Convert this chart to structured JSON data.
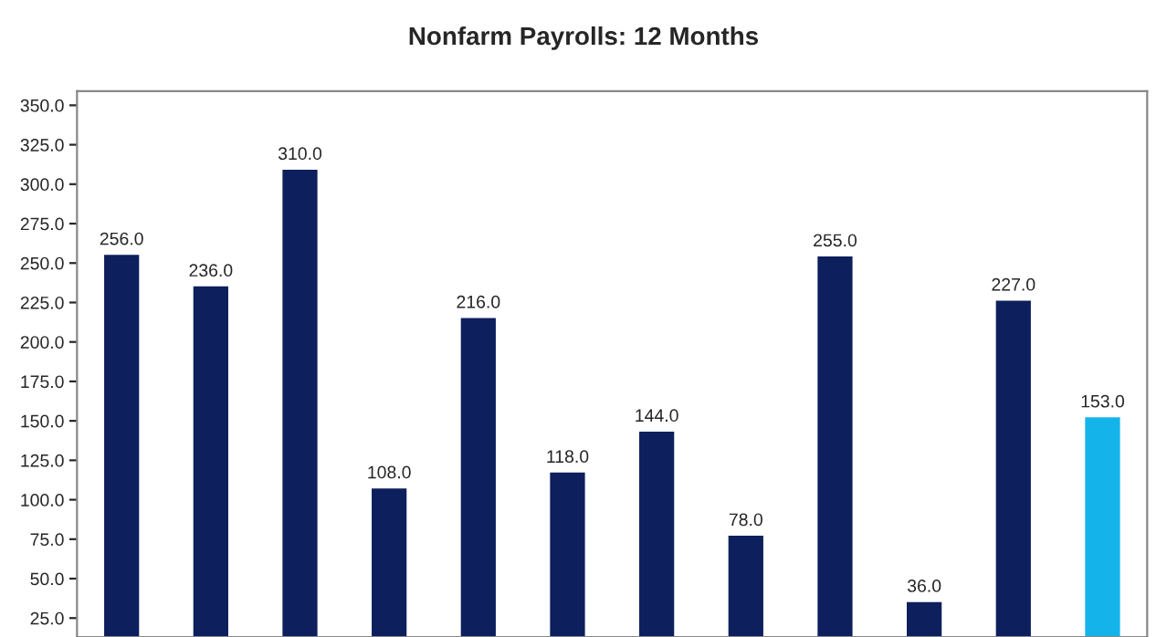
{
  "chart_data": {
    "type": "bar",
    "title": "Nonfarm Payrolls: 12 Months",
    "categories": [
      null,
      null,
      null,
      null,
      null,
      null,
      null,
      null,
      null,
      null,
      null,
      null
    ],
    "values": [
      256,
      236,
      310,
      108,
      216,
      118,
      144,
      78,
      255,
      36,
      227,
      153
    ],
    "colors": [
      "#0d1f5c",
      "#0d1f5c",
      "#0d1f5c",
      "#0d1f5c",
      "#0d1f5c",
      "#0d1f5c",
      "#0d1f5c",
      "#0d1f5c",
      "#0d1f5c",
      "#0d1f5c",
      "#0d1f5c",
      "#14b4ea"
    ],
    "value_labels": [
      "256.0",
      "236.0",
      "310.0",
      "108.0",
      "216.0",
      "118.0",
      "144.0",
      "78.0",
      "255.0",
      "36.0",
      "227.0",
      "153.0"
    ],
    "ylim": [
      13,
      359
    ],
    "yticks": [
      {
        "value": 25,
        "label": "25.0"
      },
      {
        "value": 50,
        "label": "50.0"
      },
      {
        "value": 75,
        "label": "75.0"
      },
      {
        "value": 100,
        "label": "100.0"
      },
      {
        "value": 125,
        "label": "125.0"
      },
      {
        "value": 150,
        "label": "150.0"
      },
      {
        "value": 175,
        "label": "175.0"
      },
      {
        "value": 200,
        "label": "200.0"
      },
      {
        "value": 225,
        "label": "225.0"
      },
      {
        "value": 250,
        "label": "250.0"
      },
      {
        "value": 275,
        "label": "275.0"
      },
      {
        "value": 300,
        "label": "300.0"
      },
      {
        "value": 325,
        "label": "325.0"
      },
      {
        "value": 350,
        "label": "350.0"
      }
    ],
    "grid": false,
    "legend": false,
    "tick_labels": "y"
  }
}
